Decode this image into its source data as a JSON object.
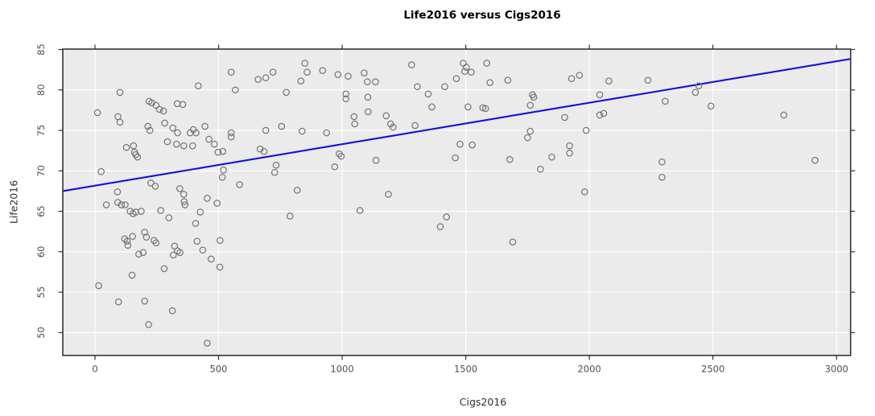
{
  "figure": {
    "title": "Life2016 versus Cigs2016",
    "xlabel": "Cigs2016",
    "ylabel": "Life2016"
  },
  "chart_data": {
    "type": "scatter",
    "title": "Life2016 versus Cigs2016",
    "xlabel": "Cigs2016",
    "ylabel": "Life2016",
    "x_ticks": [
      0,
      500,
      1000,
      1500,
      2000,
      2500,
      3000
    ],
    "y_ticks": [
      50,
      55,
      60,
      65,
      70,
      75,
      80,
      85
    ],
    "xlim": [
      -130,
      3060
    ],
    "ylim": [
      47.2,
      85.1
    ],
    "grid": true,
    "legend": "none",
    "panel_bg": "#EBEBEB",
    "grid_color": "#FFFFFF",
    "border_color": "#333333",
    "tick_color": "#333333",
    "tick_label_color": "#4d4d4d",
    "point_color": "#787878",
    "line_color": "#0F0FEE",
    "regression_line": {
      "x1": -130,
      "y1": 67.5,
      "x2": 3060,
      "y2": 83.85
    },
    "points": [
      [
        10,
        77.2
      ],
      [
        101,
        79.7
      ],
      [
        418,
        80.5
      ],
      [
        551,
        82.2
      ],
      [
        568,
        80.0
      ],
      [
        93,
        76.7
      ],
      [
        101,
        76.0
      ],
      [
        219,
        78.6
      ],
      [
        230,
        78.4
      ],
      [
        247,
        78.1
      ],
      [
        261,
        77.6
      ],
      [
        277,
        77.4
      ],
      [
        333,
        78.3
      ],
      [
        355,
        78.2
      ],
      [
        214,
        75.5
      ],
      [
        222,
        75.0
      ],
      [
        282,
        75.9
      ],
      [
        315,
        75.3
      ],
      [
        334,
        74.7
      ],
      [
        385,
        74.7
      ],
      [
        398,
        75.1
      ],
      [
        409,
        74.7
      ],
      [
        445,
        75.5
      ],
      [
        461,
        73.9
      ],
      [
        483,
        73.3
      ],
      [
        293,
        73.6
      ],
      [
        330,
        73.3
      ],
      [
        359,
        73.1
      ],
      [
        395,
        73.1
      ],
      [
        551,
        74.7
      ],
      [
        551,
        74.2
      ],
      [
        498,
        72.3
      ],
      [
        517,
        72.4
      ],
      [
        127,
        72.9
      ],
      [
        156,
        73.1
      ],
      [
        160,
        72.3
      ],
      [
        165,
        72.0
      ],
      [
        172,
        71.7
      ],
      [
        25,
        69.9
      ],
      [
        520,
        70.1
      ],
      [
        515,
        69.2
      ],
      [
        226,
        68.5
      ],
      [
        244,
        68.1
      ],
      [
        343,
        67.8
      ],
      [
        359,
        67.1
      ],
      [
        585,
        68.3
      ],
      [
        454,
        66.6
      ],
      [
        91,
        67.4
      ],
      [
        660,
        81.3
      ],
      [
        691,
        81.5
      ],
      [
        720,
        82.2
      ],
      [
        849,
        83.3
      ],
      [
        858,
        82.2
      ],
      [
        833,
        81.1
      ],
      [
        921,
        82.4
      ],
      [
        983,
        81.9
      ],
      [
        1024,
        81.7
      ],
      [
        1089,
        82.1
      ],
      [
        1102,
        81.0
      ],
      [
        1135,
        81.0
      ],
      [
        774,
        79.7
      ],
      [
        1015,
        79.5
      ],
      [
        1015,
        78.9
      ],
      [
        1104,
        79.1
      ],
      [
        1281,
        83.1
      ],
      [
        1304,
        80.4
      ],
      [
        1348,
        79.5
      ],
      [
        1415,
        80.4
      ],
      [
        1462,
        81.4
      ],
      [
        1363,
        77.9
      ],
      [
        1105,
        77.3
      ],
      [
        1048,
        76.7
      ],
      [
        1051,
        75.8
      ],
      [
        1178,
        76.8
      ],
      [
        1196,
        75.8
      ],
      [
        1206,
        75.4
      ],
      [
        1295,
        75.6
      ],
      [
        691,
        75.0
      ],
      [
        755,
        75.5
      ],
      [
        838,
        74.9
      ],
      [
        937,
        74.7
      ],
      [
        668,
        72.7
      ],
      [
        684,
        72.4
      ],
      [
        733,
        70.7
      ],
      [
        727,
        69.8
      ],
      [
        988,
        72.1
      ],
      [
        996,
        71.8
      ],
      [
        970,
        70.5
      ],
      [
        1137,
        71.3
      ],
      [
        1187,
        67.1
      ],
      [
        818,
        67.6
      ],
      [
        1458,
        71.6
      ],
      [
        1490,
        83.3
      ],
      [
        1502,
        82.8
      ],
      [
        1496,
        82.3
      ],
      [
        1522,
        82.2
      ],
      [
        1585,
        83.3
      ],
      [
        1598,
        80.9
      ],
      [
        1670,
        81.2
      ],
      [
        1509,
        77.9
      ],
      [
        1569,
        77.8
      ],
      [
        1580,
        77.7
      ],
      [
        1770,
        79.4
      ],
      [
        1775,
        79.1
      ],
      [
        1761,
        78.1
      ],
      [
        1928,
        81.4
      ],
      [
        1960,
        81.8
      ],
      [
        2042,
        79.4
      ],
      [
        2079,
        81.1
      ],
      [
        2237,
        81.2
      ],
      [
        2042,
        76.9
      ],
      [
        2058,
        77.1
      ],
      [
        1900,
        76.6
      ],
      [
        1987,
        75.0
      ],
      [
        1750,
        74.1
      ],
      [
        1761,
        74.9
      ],
      [
        1477,
        73.3
      ],
      [
        1526,
        73.2
      ],
      [
        1920,
        73.1
      ],
      [
        1848,
        71.7
      ],
      [
        1920,
        72.2
      ],
      [
        1678,
        71.4
      ],
      [
        1802,
        70.2
      ],
      [
        1981,
        67.4
      ],
      [
        2443,
        80.5
      ],
      [
        2307,
        78.6
      ],
      [
        2429,
        79.7
      ],
      [
        2492,
        78.0
      ],
      [
        2787,
        76.9
      ],
      [
        2294,
        71.1
      ],
      [
        2294,
        69.2
      ],
      [
        2913,
        71.3
      ],
      [
        46,
        65.8
      ],
      [
        92,
        66.1
      ],
      [
        107,
        65.8
      ],
      [
        122,
        65.8
      ],
      [
        142,
        65.0
      ],
      [
        154,
        64.7
      ],
      [
        165,
        64.9
      ],
      [
        187,
        65.0
      ],
      [
        266,
        65.1
      ],
      [
        299,
        64.2
      ],
      [
        361,
        66.2
      ],
      [
        364,
        65.8
      ],
      [
        407,
        63.5
      ],
      [
        426,
        64.9
      ],
      [
        494,
        66.0
      ],
      [
        201,
        62.4
      ],
      [
        208,
        61.8
      ],
      [
        120,
        61.6
      ],
      [
        130,
        61.3
      ],
      [
        133,
        60.8
      ],
      [
        152,
        61.9
      ],
      [
        239,
        61.4
      ],
      [
        247,
        61.1
      ],
      [
        177,
        59.7
      ],
      [
        195,
        59.9
      ],
      [
        322,
        60.7
      ],
      [
        334,
        60.1
      ],
      [
        317,
        59.6
      ],
      [
        344,
        59.9
      ],
      [
        413,
        61.3
      ],
      [
        436,
        60.2
      ],
      [
        506,
        61.4
      ],
      [
        470,
        59.1
      ],
      [
        505,
        58.1
      ],
      [
        280,
        57.9
      ],
      [
        150,
        57.1
      ],
      [
        15,
        55.8
      ],
      [
        95,
        53.8
      ],
      [
        201,
        53.9
      ],
      [
        313,
        52.7
      ],
      [
        217,
        51.0
      ],
      [
        454,
        48.7
      ],
      [
        789,
        64.4
      ],
      [
        1072,
        65.1
      ],
      [
        1422,
        64.3
      ],
      [
        1397,
        63.1
      ],
      [
        1690,
        61.2
      ]
    ]
  }
}
